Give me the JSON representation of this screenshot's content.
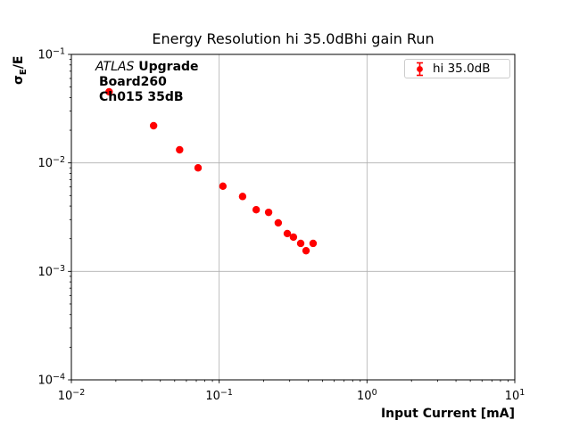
{
  "figure": {
    "title": "Energy Resolution hi 35.0dBhi gain Run",
    "xlabel": "Input Current [mA]",
    "ylabel": {
      "sigma": "σ",
      "subscript": "E",
      "rest": "/E"
    },
    "annotation": {
      "line1_italic": "ATLAS",
      "line1_bold": "Upgrade",
      "line2": "Board260",
      "line3": "Ch015 35dB"
    },
    "legend": {
      "label": "hi 35.0dB"
    }
  },
  "colors": {
    "accent": "#ff0000",
    "grid": "#b0b0b0",
    "axis": "#000000",
    "legend_border": "#cccccc",
    "background": "#ffffff"
  },
  "chart_data": {
    "type": "scatter",
    "title": "Energy Resolution hi 35.0dBhi gain Run",
    "xlabel": "Input Current [mA]",
    "ylabel": "sigma_E / E",
    "xscale": "log",
    "yscale": "log",
    "xlim": [
      0.01,
      10
    ],
    "ylim": [
      0.0001,
      0.1
    ],
    "x_tick_exponents": [
      -2,
      -1,
      0,
      1
    ],
    "y_tick_exponents": [
      -1,
      -2,
      -3,
      -4
    ],
    "grid": true,
    "legend_position": "upper right",
    "annotation_lines": [
      "ATLAS Upgrade",
      "Board260",
      "Ch015 35dB"
    ],
    "series": [
      {
        "name": "hi 35.0dB",
        "color": "#ff0000",
        "marker": "circle-errorbar",
        "x": [
          0.018,
          0.036,
          0.054,
          0.072,
          0.106,
          0.144,
          0.178,
          0.216,
          0.251,
          0.289,
          0.318,
          0.356,
          0.387,
          0.432
        ],
        "y": [
          0.0452,
          0.022,
          0.0132,
          0.009,
          0.0061,
          0.0049,
          0.0037,
          0.0035,
          0.0028,
          0.00223,
          0.00207,
          0.00181,
          0.00155,
          0.00181
        ]
      }
    ]
  }
}
